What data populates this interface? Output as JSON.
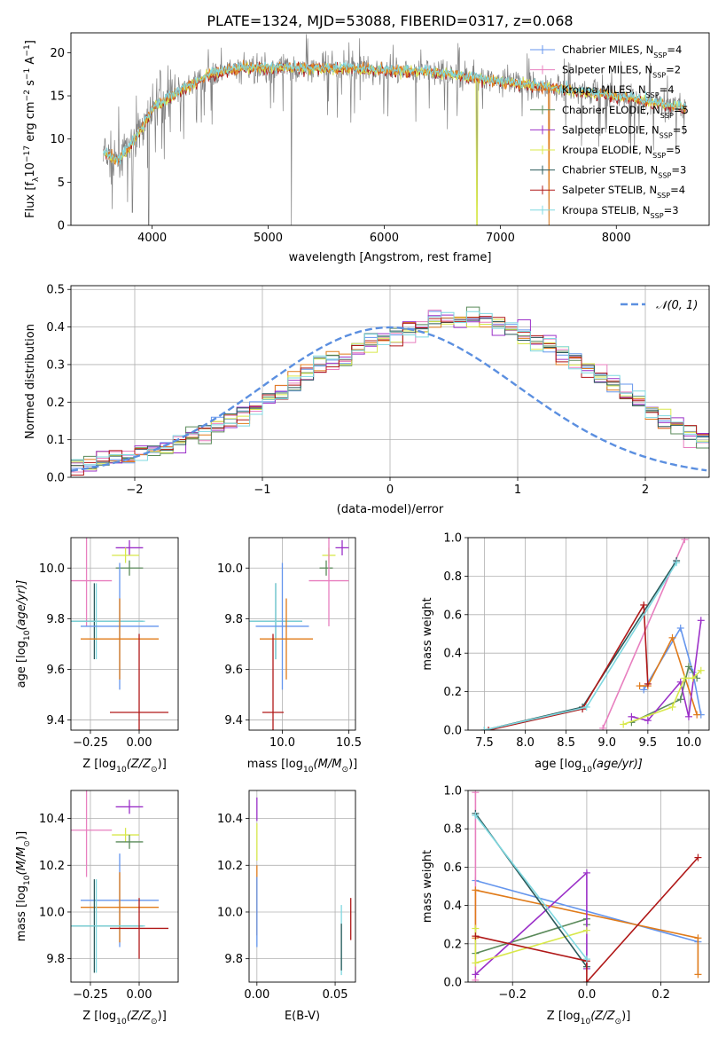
{
  "figure": {
    "title": "PLATE=1324, MJD=53088, FIBERID=0317, z=0.068"
  },
  "colors": {
    "Chabrier MILES": "#6495ed",
    "Salpeter MILES": "#e87fbf",
    "Kroupa MILES": "#e07b1a",
    "Chabrier ELODIE": "#5a8a5a",
    "Salpeter ELODIE": "#9b30c8",
    "Kroupa ELODIE": "#d8e84a",
    "Chabrier STELIB": "#2a5a5a",
    "Salpeter STELIB": "#b01818",
    "Kroupa STELIB": "#7fd8e0",
    "data": "#808080",
    "gaussian": "#5b8fe0"
  },
  "legend_spectrum": [
    {
      "model": "Chabrier MILES",
      "text": "Chabrier MILES, N",
      "sub": "SSP",
      "n": "=4"
    },
    {
      "model": "Salpeter MILES",
      "text": "Salpeter MILES, N",
      "sub": "SSP",
      "n": "=2"
    },
    {
      "model": "Kroupa MILES",
      "text": "Kroupa MILES, N",
      "sub": "SSP",
      "n": "=4"
    },
    {
      "model": "Chabrier ELODIE",
      "text": "Chabrier ELODIE, N",
      "sub": "SSP",
      "n": "=5"
    },
    {
      "model": "Salpeter ELODIE",
      "text": "Salpeter ELODIE, N",
      "sub": "SSP",
      "n": "=5"
    },
    {
      "model": "Kroupa ELODIE",
      "text": "Kroupa ELODIE, N",
      "sub": "SSP",
      "n": "=5"
    },
    {
      "model": "Chabrier STELIB",
      "text": "Chabrier STELIB, N",
      "sub": "SSP",
      "n": "=3"
    },
    {
      "model": "Salpeter STELIB",
      "text": "Salpeter STELIB, N",
      "sub": "SSP",
      "n": "=4"
    },
    {
      "model": "Kroupa STELIB",
      "text": "Kroupa STELIB, N",
      "sub": "SSP",
      "n": "=3"
    }
  ],
  "chart_data": [
    {
      "id": "spectrum",
      "type": "line",
      "xlabel": "wavelength [Angstrom, rest frame]",
      "ylabel_main": "Flux [f",
      "ylabel_sub": "λ",
      "ylabel_tail": "10",
      "ylabel_sup1": "−17",
      "ylabel_mid": " erg cm",
      "ylabel_sup2": "−2",
      "ylabel_s": " s",
      "ylabel_sup3": "−1",
      "ylabel_end": " A",
      "ylabel_sup4": "−1",
      "ylabel_close": "]",
      "xlim": [
        3300,
        8800
      ],
      "ylim": [
        0,
        22.3
      ],
      "xticks": [
        4000,
        5000,
        6000,
        7000,
        8000
      ],
      "yticks": [
        0,
        5,
        10,
        15,
        20
      ],
      "data_range": [
        3580,
        8600
      ],
      "continuum_knots": [
        [
          3580,
          8.5
        ],
        [
          3700,
          7.5
        ],
        [
          3800,
          9
        ],
        [
          3900,
          11
        ],
        [
          4000,
          13.5
        ],
        [
          4200,
          15.3
        ],
        [
          4500,
          17.5
        ],
        [
          4800,
          18.3
        ],
        [
          5200,
          18.2
        ],
        [
          5600,
          18.2
        ],
        [
          6000,
          18
        ],
        [
          6400,
          17.8
        ],
        [
          6800,
          17
        ],
        [
          7200,
          16.4
        ],
        [
          7600,
          15.7
        ],
        [
          8000,
          15
        ],
        [
          8300,
          14.3
        ],
        [
          8600,
          13.6
        ]
      ],
      "spikes_down": [
        [
          3830,
          1.5
        ],
        [
          3970,
          0
        ],
        [
          5200,
          0
        ],
        [
          6800,
          0
        ],
        [
          7420,
          0
        ]
      ]
    },
    {
      "id": "residuals",
      "type": "area",
      "xlabel": "(data-model)/error",
      "ylabel": "Normed distribution",
      "xlim": [
        -2.5,
        2.5
      ],
      "ylim": [
        0,
        0.51
      ],
      "xticks": [
        -2,
        -1,
        0,
        1,
        2
      ],
      "yticks": [
        0.0,
        0.1,
        0.2,
        0.3,
        0.4,
        0.5
      ],
      "ytick_labels": [
        "0.0",
        "0.1",
        "0.2",
        "0.3",
        "0.4",
        "0.5"
      ],
      "xtick_labels": [
        "−2",
        "−1",
        "0",
        "1",
        "2"
      ],
      "legend_label": "𝒩(0, 1)",
      "bin_edges_start": -2.5,
      "bin_width": 0.1,
      "hist_mean": [
        0.035,
        0.04,
        0.045,
        0.05,
        0.055,
        0.062,
        0.07,
        0.08,
        0.095,
        0.11,
        0.12,
        0.135,
        0.15,
        0.17,
        0.19,
        0.21,
        0.23,
        0.25,
        0.275,
        0.295,
        0.31,
        0.32,
        0.34,
        0.36,
        0.375,
        0.385,
        0.395,
        0.4,
        0.41,
        0.42,
        0.42,
        0.425,
        0.42,
        0.41,
        0.4,
        0.385,
        0.365,
        0.35,
        0.33,
        0.31,
        0.29,
        0.27,
        0.25,
        0.225,
        0.2,
        0.175,
        0.155,
        0.135,
        0.115,
        0.1,
        0.085,
        0.075,
        0.065,
        0.055,
        0.048,
        0.042,
        0.037,
        0.033,
        0.03,
        0.027
      ]
    },
    {
      "id": "age_vs_Z",
      "type": "scatter",
      "xlabel": "Z [log",
      "xlabel_sub": "10",
      "xlabel_tail": "(Z/Z",
      "xlabel_sun": "⊙",
      "xlabel_end": ")]",
      "ylabel": "age  [log",
      "ylabel_sub": "10",
      "ylabel_tail": "(age/yr)]",
      "xlim": [
        -0.35,
        0.2
      ],
      "ylim": [
        9.36,
        10.12
      ],
      "xticks": [
        -0.25,
        0.0
      ],
      "xtick_labels": [
        "−0.25",
        "0.00"
      ],
      "yticks": [
        9.4,
        9.6,
        9.8,
        10.0
      ],
      "ytick_labels": [
        "9.4",
        "9.6",
        "9.8",
        "10.0"
      ],
      "points": [
        {
          "model": "Salpeter ELODIE",
          "x": -0.05,
          "xerr": 0.07,
          "y": 10.08,
          "yerr": 0.03
        },
        {
          "model": "Kroupa ELODIE",
          "x": -0.07,
          "xerr": 0.07,
          "y": 10.05,
          "yerr": 0.03
        },
        {
          "model": "Chabrier ELODIE",
          "x": -0.05,
          "xerr": 0.07,
          "y": 10.0,
          "yerr": 0.03
        },
        {
          "model": "Salpeter MILES",
          "x": -0.27,
          "xerr": 0.13,
          "y": 9.95,
          "yerr": 0.18
        },
        {
          "model": "Chabrier STELIB",
          "x": -0.23,
          "xerr": 0.25,
          "y": 9.79,
          "yerr": 0.15
        },
        {
          "model": "Kroupa STELIB",
          "x": -0.22,
          "xerr": 0.25,
          "y": 9.79,
          "yerr": 0.15
        },
        {
          "model": "Chabrier MILES",
          "x": -0.1,
          "xerr": 0.2,
          "y": 9.77,
          "yerr": 0.25
        },
        {
          "model": "Kroupa MILES",
          "x": -0.1,
          "xerr": 0.2,
          "y": 9.72,
          "yerr": 0.16
        },
        {
          "model": "Salpeter STELIB",
          "x": 0.0,
          "xerr": 0.15,
          "y": 9.43,
          "yerr": 0.31
        }
      ]
    },
    {
      "id": "age_vs_mass",
      "type": "scatter",
      "xlabel": "mass [log",
      "xlabel_sub": "10",
      "xlabel_tail": "(M/M",
      "xlabel_sun": "⊙",
      "xlabel_end": ")]",
      "xlim": [
        9.75,
        10.55
      ],
      "ylim": [
        9.36,
        10.12
      ],
      "xticks": [
        10.0,
        10.5
      ],
      "xtick_labels": [
        "10.0",
        "10.5"
      ],
      "yticks": [
        9.4,
        9.6,
        9.8,
        10.0
      ],
      "ytick_labels": [
        "9.4",
        "9.6",
        "9.8",
        "10.0"
      ],
      "points": [
        {
          "model": "Salpeter ELODIE",
          "x": 10.45,
          "xerr": 0.05,
          "y": 10.08,
          "yerr": 0.03
        },
        {
          "model": "Kroupa ELODIE",
          "x": 10.35,
          "xerr": 0.05,
          "y": 10.05,
          "yerr": 0.03
        },
        {
          "model": "Chabrier ELODIE",
          "x": 10.33,
          "xerr": 0.05,
          "y": 10.0,
          "yerr": 0.03
        },
        {
          "model": "Salpeter MILES",
          "x": 10.35,
          "xerr": 0.15,
          "y": 9.95,
          "yerr": 0.18
        },
        {
          "model": "Chabrier STELIB",
          "x": 9.95,
          "xerr": 0.2,
          "y": 9.79,
          "yerr": 0.15
        },
        {
          "model": "Kroupa STELIB",
          "x": 9.95,
          "xerr": 0.2,
          "y": 9.79,
          "yerr": 0.15
        },
        {
          "model": "Chabrier MILES",
          "x": 10.0,
          "xerr": 0.2,
          "y": 9.77,
          "yerr": 0.25
        },
        {
          "model": "Kroupa MILES",
          "x": 10.03,
          "xerr": 0.2,
          "y": 9.72,
          "yerr": 0.16
        },
        {
          "model": "Salpeter STELIB",
          "x": 9.93,
          "xerr": 0.08,
          "y": 9.43,
          "yerr": 0.31
        }
      ]
    },
    {
      "id": "weight_vs_age",
      "type": "line",
      "xlabel": "age  [log",
      "xlabel_sub": "10",
      "xlabel_tail": "(age/yr)]",
      "ylabel": "mass weight",
      "xlim": [
        7.3,
        10.25
      ],
      "ylim": [
        0,
        1.0
      ],
      "xticks": [
        7.5,
        8.0,
        8.5,
        9.0,
        9.5,
        10.0
      ],
      "xtick_labels": [
        "7.5",
        "8.0",
        "8.5",
        "9.0",
        "9.5",
        "10.0"
      ],
      "yticks": [
        0.0,
        0.2,
        0.4,
        0.6,
        0.8,
        1.0
      ],
      "ytick_labels": [
        "0.0",
        "0.2",
        "0.4",
        "0.6",
        "0.8",
        "1.0"
      ],
      "series": [
        {
          "model": "Chabrier MILES",
          "x": [
            9.45,
            9.9,
            10.05,
            10.15
          ],
          "y": [
            0.21,
            0.53,
            0.3,
            0.08
          ]
        },
        {
          "model": "Salpeter MILES",
          "x": [
            8.95,
            9.95
          ],
          "y": [
            0.01,
            0.99
          ]
        },
        {
          "model": "Kroupa MILES",
          "x": [
            9.4,
            9.5,
            9.8,
            10.1
          ],
          "y": [
            0.23,
            0.23,
            0.48,
            0.08
          ]
        },
        {
          "model": "Chabrier ELODIE",
          "x": [
            9.3,
            9.9,
            10.0,
            10.1
          ],
          "y": [
            0.04,
            0.16,
            0.33,
            0.27
          ]
        },
        {
          "model": "Salpeter ELODIE",
          "x": [
            9.3,
            9.5,
            9.9,
            10.0,
            10.15
          ],
          "y": [
            0.07,
            0.05,
            0.25,
            0.07,
            0.57
          ]
        },
        {
          "model": "Kroupa ELODIE",
          "x": [
            9.2,
            9.8,
            9.95,
            10.05,
            10.15
          ],
          "y": [
            0.03,
            0.12,
            0.27,
            0.27,
            0.31
          ]
        },
        {
          "model": "Chabrier STELIB",
          "x": [
            7.5,
            8.7,
            9.85
          ],
          "y": [
            0.0,
            0.12,
            0.88
          ]
        },
        {
          "model": "Salpeter STELIB",
          "x": [
            7.55,
            8.7,
            9.45,
            9.5
          ],
          "y": [
            0.0,
            0.11,
            0.65,
            0.24
          ]
        },
        {
          "model": "Kroupa STELIB",
          "x": [
            7.5,
            8.75,
            9.85
          ],
          "y": [
            0.0,
            0.12,
            0.87
          ]
        }
      ]
    },
    {
      "id": "mass_vs_Z",
      "type": "scatter",
      "xlabel": "Z [log",
      "xlabel_sub": "10",
      "xlabel_tail": "(Z/Z",
      "xlabel_sun": "⊙",
      "xlabel_end": ")]",
      "ylabel": "mass [log",
      "ylabel_sub": "10",
      "ylabel_tail": "(M/M",
      "ylabel_sun": "⊙",
      "ylabel_end": ")]",
      "xlim": [
        -0.35,
        0.2
      ],
      "ylim": [
        9.7,
        10.52
      ],
      "xticks": [
        -0.25,
        0.0
      ],
      "xtick_labels": [
        "−0.25",
        "0.00"
      ],
      "yticks": [
        9.8,
        10.0,
        10.2,
        10.4
      ],
      "ytick_labels": [
        "9.8",
        "10.0",
        "10.2",
        "10.4"
      ],
      "points": [
        {
          "model": "Salpeter ELODIE",
          "x": -0.05,
          "xerr": 0.07,
          "y": 10.45,
          "yerr": 0.03
        },
        {
          "model": "Kroupa ELODIE",
          "x": -0.07,
          "xerr": 0.07,
          "y": 10.33,
          "yerr": 0.03
        },
        {
          "model": "Chabrier ELODIE",
          "x": -0.05,
          "xerr": 0.07,
          "y": 10.3,
          "yerr": 0.03
        },
        {
          "model": "Salpeter MILES",
          "x": -0.27,
          "xerr": 0.13,
          "y": 10.35,
          "yerr": 0.2
        },
        {
          "model": "Chabrier MILES",
          "x": -0.1,
          "xerr": 0.2,
          "y": 10.05,
          "yerr": 0.2
        },
        {
          "model": "Kroupa MILES",
          "x": -0.1,
          "xerr": 0.2,
          "y": 10.02,
          "yerr": 0.15
        },
        {
          "model": "Chabrier STELIB",
          "x": -0.23,
          "xerr": 0.25,
          "y": 9.94,
          "yerr": 0.2
        },
        {
          "model": "Kroupa STELIB",
          "x": -0.22,
          "xerr": 0.25,
          "y": 9.94,
          "yerr": 0.2
        },
        {
          "model": "Salpeter STELIB",
          "x": 0.0,
          "xerr": 0.15,
          "y": 9.93,
          "yerr": 0.13
        }
      ]
    },
    {
      "id": "mass_vs_ebv",
      "type": "scatter",
      "xlabel": "E(B-V)",
      "xlim": [
        -0.005,
        0.063
      ],
      "ylim": [
        9.7,
        10.52
      ],
      "xticks": [
        0.0,
        0.05
      ],
      "xtick_labels": [
        "0.00",
        "0.05"
      ],
      "yticks": [
        9.8,
        10.0,
        10.2,
        10.4
      ],
      "ytick_labels": [
        "9.8",
        "10.0",
        "10.2",
        "10.4"
      ],
      "points": [
        {
          "model": "Salpeter ELODIE",
          "x": 0.0,
          "y": 10.44,
          "yerr": 0.05
        },
        {
          "model": "Kroupa ELODIE",
          "x": 0.0,
          "y": 10.3,
          "yerr": 0.08
        },
        {
          "model": "Kroupa MILES",
          "x": 0.0,
          "y": 10.05,
          "yerr": 0.15
        },
        {
          "model": "Chabrier MILES",
          "x": 0.0,
          "y": 10.0,
          "yerr": 0.15
        },
        {
          "model": "Kroupa STELIB",
          "x": 0.054,
          "y": 9.88,
          "yerr": 0.15
        },
        {
          "model": "Chabrier STELIB",
          "x": 0.054,
          "y": 9.85,
          "yerr": 0.1
        },
        {
          "model": "Salpeter STELIB",
          "x": 0.06,
          "y": 9.97,
          "yerr": 0.09
        }
      ]
    },
    {
      "id": "weight_vs_Z",
      "type": "line",
      "xlabel": "Z [log",
      "xlabel_sub": "10",
      "xlabel_tail": "(Z/Z",
      "xlabel_sun": "⊙",
      "xlabel_end": ")]",
      "ylabel": "mass weight",
      "xlim": [
        -0.32,
        0.33
      ],
      "ylim": [
        0,
        1.0
      ],
      "xticks": [
        -0.2,
        0.0,
        0.2
      ],
      "xtick_labels": [
        "−0.2",
        "0.0",
        "0.2"
      ],
      "yticks": [
        0.0,
        0.2,
        0.4,
        0.6,
        0.8,
        1.0
      ],
      "ytick_labels": [
        "0.0",
        "0.2",
        "0.4",
        "0.6",
        "0.8",
        "1.0"
      ],
      "series": [
        {
          "model": "Chabrier MILES",
          "x": [
            -0.3,
            0.3
          ],
          "y": [
            0.53,
            0.21
          ]
        },
        {
          "model": "Salpeter MILES",
          "x": [
            -0.3,
            -0.3
          ],
          "y": [
            0.99,
            0.01
          ]
        },
        {
          "model": "Kroupa MILES",
          "x": [
            -0.3,
            -0.3,
            0.3,
            0.3
          ],
          "y": [
            0.23,
            0.48,
            0.23,
            0.04
          ]
        },
        {
          "model": "Chabrier ELODIE",
          "x": [
            -0.3,
            0.0,
            0.0
          ],
          "y": [
            0.15,
            0.33,
            0.3
          ]
        },
        {
          "model": "Salpeter ELODIE",
          "x": [
            -0.3,
            0.0,
            0.0
          ],
          "y": [
            0.04,
            0.57,
            0.07
          ]
        },
        {
          "model": "Kroupa ELODIE",
          "x": [
            -0.3,
            -0.3,
            0.0
          ],
          "y": [
            0.28,
            0.1,
            0.27
          ]
        },
        {
          "model": "Chabrier STELIB",
          "x": [
            -0.3,
            0.0
          ],
          "y": [
            0.88,
            0.08
          ]
        },
        {
          "model": "Salpeter STELIB",
          "x": [
            -0.3,
            0.0,
            0.0,
            0.3
          ],
          "y": [
            0.24,
            0.11,
            0.0,
            0.65
          ]
        },
        {
          "model": "Kroupa STELIB",
          "x": [
            -0.3,
            0.0
          ],
          "y": [
            0.87,
            0.12
          ]
        }
      ]
    }
  ]
}
